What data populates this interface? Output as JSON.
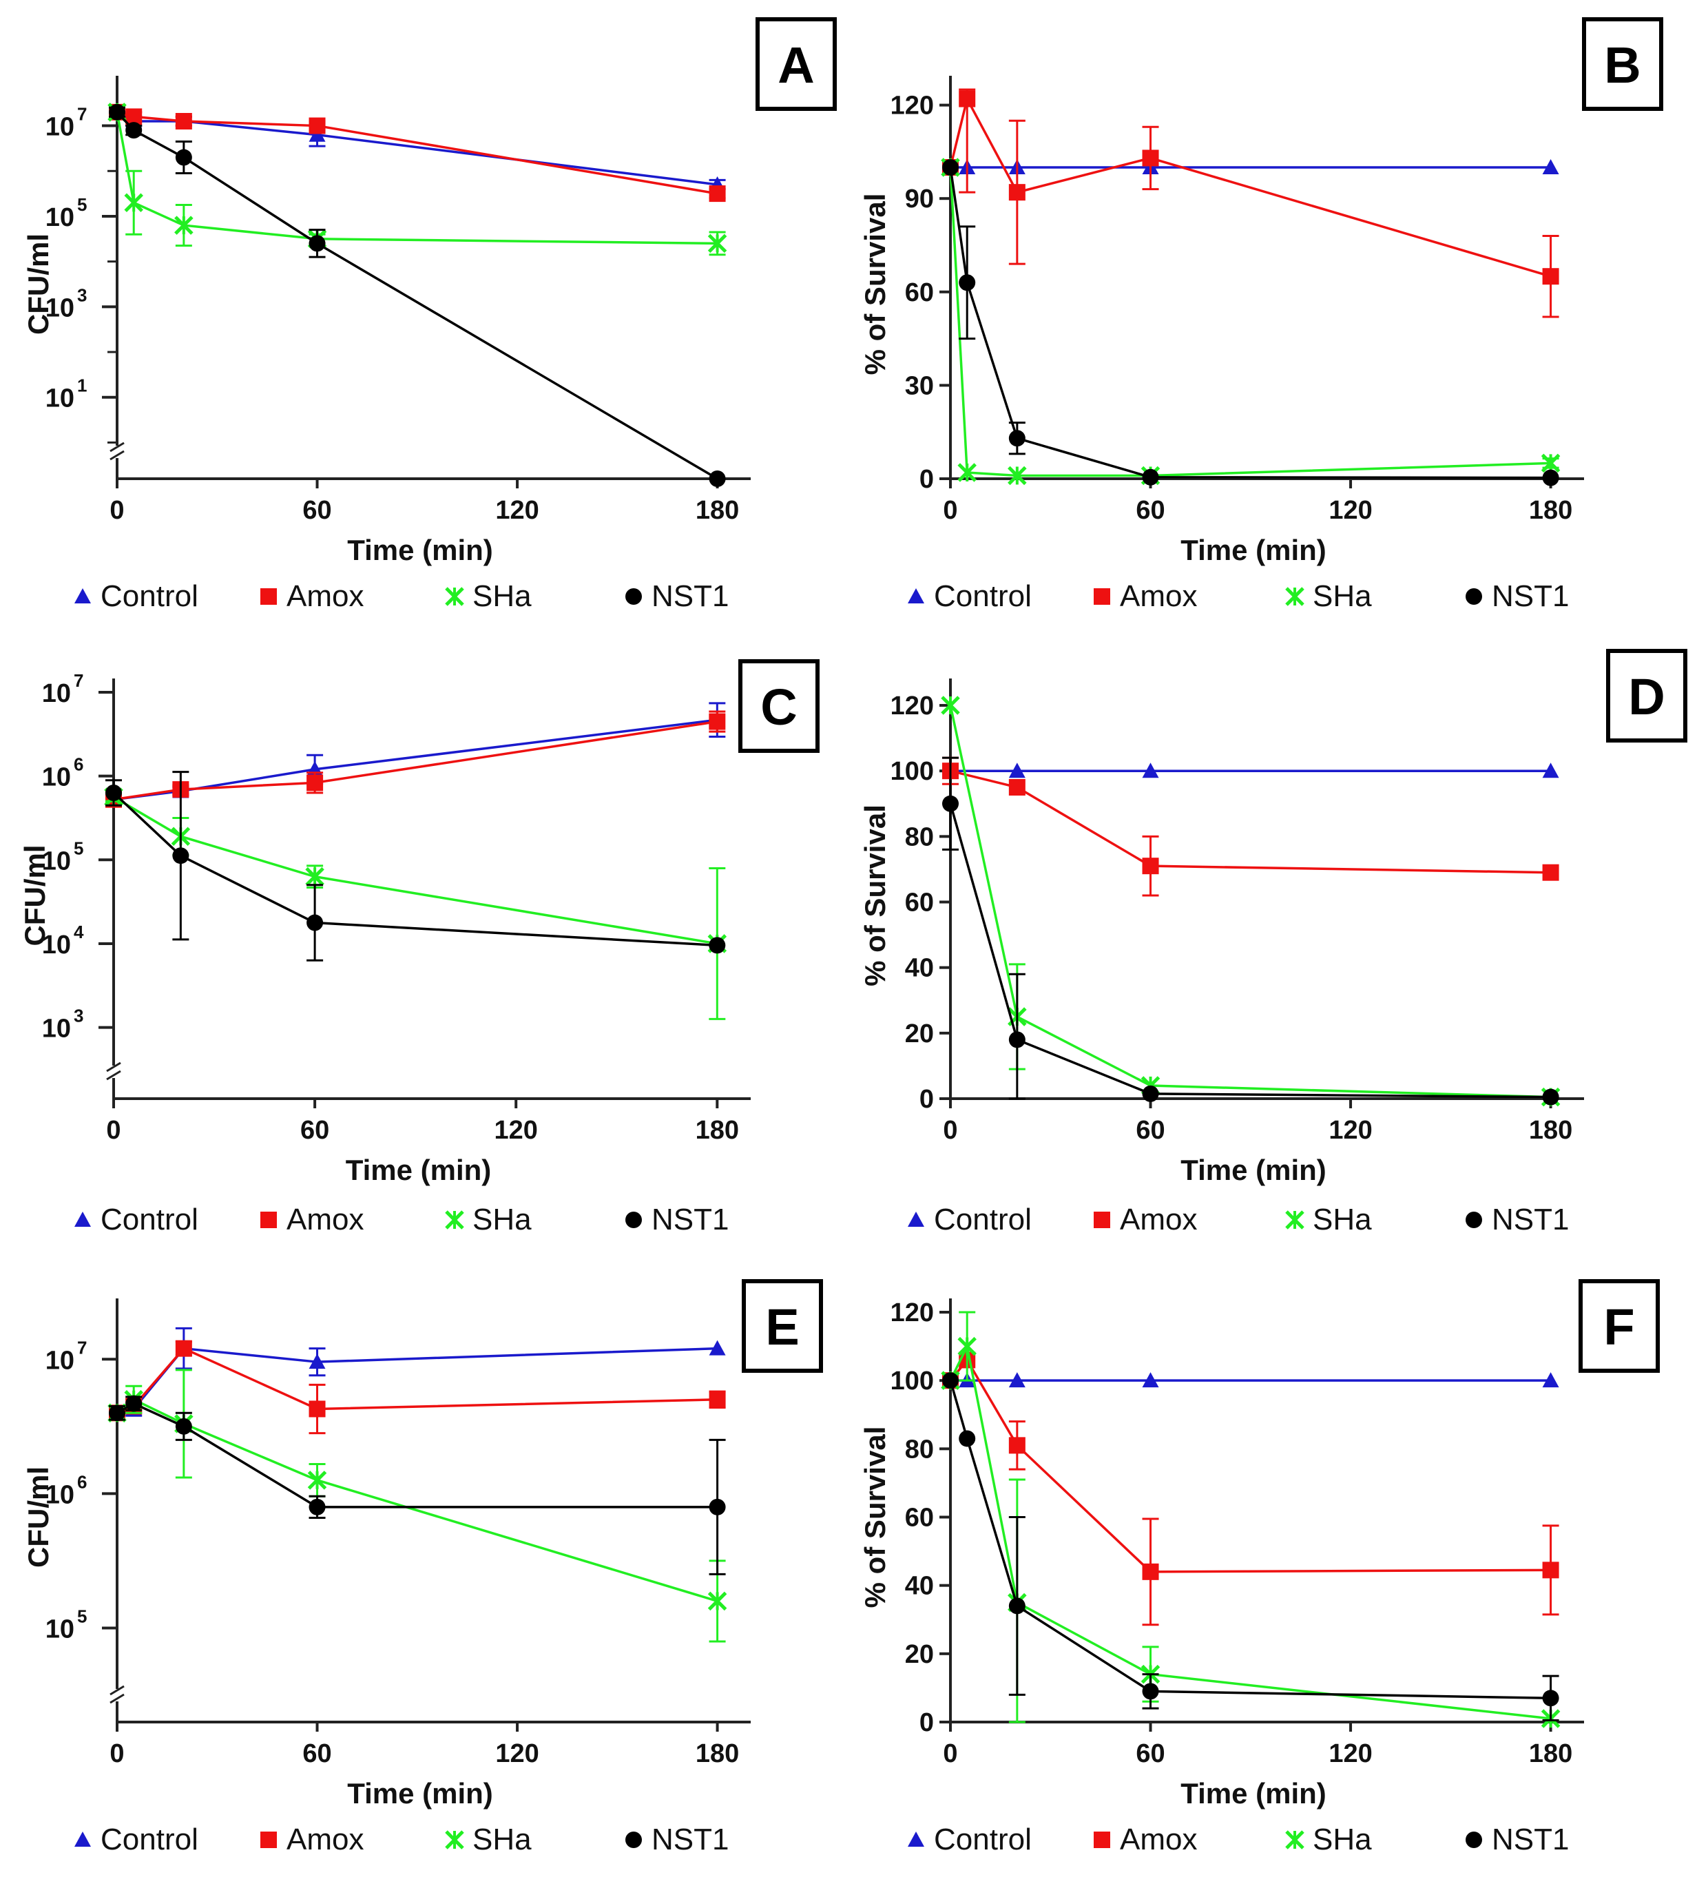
{
  "figure": {
    "series_styles": [
      {
        "name": "Control",
        "color": "#1a1acc",
        "marker": "triangle"
      },
      {
        "name": "Amox",
        "color": "#ee1111",
        "marker": "square"
      },
      {
        "name": "SHa",
        "color": "#22ee22",
        "marker": "cross"
      },
      {
        "name": "NST1",
        "color": "#000000",
        "marker": "circle"
      }
    ]
  },
  "chart_data": [
    {
      "panel": "A",
      "type": "line",
      "scale": "log",
      "xlabel": "Time (min)",
      "ylabel": "CFU/ml",
      "xlim": [
        0,
        190
      ],
      "xticks": [
        0,
        60,
        120,
        180
      ],
      "ylim_exp": [
        -0.8,
        7.8
      ],
      "yticks": [
        {
          "exp": 1,
          "base": "10",
          "sup": "1"
        },
        {
          "exp": 3,
          "base": "10",
          "sup": "3"
        },
        {
          "exp": 5,
          "base": "10",
          "sup": "5"
        },
        {
          "exp": 7,
          "base": "10",
          "sup": "7"
        }
      ],
      "axis_break": true,
      "legend": [
        "Control",
        "Amox",
        "SHa",
        "NST1"
      ],
      "series": [
        {
          "name": "Control",
          "x": [
            0,
            5,
            20,
            60,
            180
          ],
          "y": [
            7.3,
            7.1,
            7.1,
            6.8,
            5.7
          ],
          "err": [
            0.1,
            0.1,
            0.1,
            0.25,
            0.1
          ]
        },
        {
          "name": "Amox",
          "x": [
            0,
            5,
            20,
            60,
            180
          ],
          "y": [
            7.3,
            7.2,
            7.1,
            7.0,
            5.5
          ],
          "err": [
            0.1,
            0.1,
            0.1,
            0.1,
            0.1
          ]
        },
        {
          "name": "SHa",
          "x": [
            0,
            5,
            20,
            60,
            180
          ],
          "y": [
            7.3,
            5.3,
            4.8,
            4.5,
            4.4
          ],
          "err": [
            0.1,
            0.7,
            0.45,
            0.1,
            0.25
          ]
        },
        {
          "name": "NST1",
          "x": [
            0,
            5,
            20,
            60,
            180
          ],
          "y": [
            7.3,
            6.9,
            6.3,
            4.4,
            -0.8
          ],
          "err": [
            0.1,
            0.1,
            0.35,
            0.3,
            0
          ]
        }
      ]
    },
    {
      "panel": "B",
      "type": "line",
      "scale": "linear",
      "xlabel": "Time (min)",
      "ylabel": "% of Survival",
      "xlim": [
        0,
        190
      ],
      "xticks": [
        0,
        60,
        120,
        180
      ],
      "ylim": [
        0,
        125
      ],
      "yticks": [
        0,
        30,
        60,
        90,
        120
      ],
      "legend": [
        "Control",
        "Amox",
        "SHa",
        "NST1"
      ],
      "series": [
        {
          "name": "Control",
          "x": [
            0,
            5,
            20,
            60,
            180
          ],
          "y": [
            100,
            100,
            100,
            100,
            100
          ],
          "err": [
            0,
            0,
            0,
            0,
            0
          ]
        },
        {
          "name": "Amox",
          "x": [
            0,
            5,
            20,
            60,
            180
          ],
          "y": [
            100,
            122,
            92,
            103,
            65
          ],
          "err": [
            0,
            30,
            23,
            10,
            13
          ]
        },
        {
          "name": "SHa",
          "x": [
            0,
            5,
            20,
            60,
            180
          ],
          "y": [
            100,
            2,
            1,
            1,
            5
          ],
          "err": [
            0,
            0,
            0,
            0,
            1.5
          ]
        },
        {
          "name": "NST1",
          "x": [
            0,
            5,
            20,
            60,
            180
          ],
          "y": [
            100,
            63,
            13,
            0.5,
            0.3
          ],
          "err": [
            0,
            18,
            5,
            0,
            0
          ]
        }
      ]
    },
    {
      "panel": "C",
      "type": "line",
      "scale": "log",
      "xlabel": "Time (min)",
      "ylabel": "CFU/ml",
      "xlim": [
        0,
        190
      ],
      "xticks": [
        0,
        60,
        120,
        180
      ],
      "ylim_exp": [
        2.15,
        7.0
      ],
      "yticks": [
        {
          "exp": 3,
          "base": "10",
          "sup": "3"
        },
        {
          "exp": 4,
          "base": "10",
          "sup": "4"
        },
        {
          "exp": 5,
          "base": "10",
          "sup": "5"
        },
        {
          "exp": 6,
          "base": "10",
          "sup": "6"
        },
        {
          "exp": 7,
          "base": "10",
          "sup": "7"
        }
      ],
      "axis_break": true,
      "legend": [
        "Control",
        "Amox",
        "SHa",
        "NST1"
      ],
      "series": [
        {
          "name": "Control",
          "x": [
            0,
            20,
            60,
            180
          ],
          "y": [
            5.72,
            5.82,
            6.08,
            6.67
          ],
          "err": [
            0.05,
            0.05,
            0.17,
            0.2
          ]
        },
        {
          "name": "Amox",
          "x": [
            0,
            20,
            60,
            180
          ],
          "y": [
            5.72,
            5.84,
            5.92,
            6.65
          ],
          "err": [
            0.05,
            0.05,
            0.12,
            0.12
          ]
        },
        {
          "name": "SHa",
          "x": [
            0,
            20,
            60,
            180
          ],
          "y": [
            5.75,
            5.28,
            4.8,
            4.0
          ],
          "err": [
            0.05,
            0.22,
            0.13,
            0.9
          ]
        },
        {
          "name": "NST1",
          "x": [
            0,
            20,
            60,
            180
          ],
          "y": [
            5.8,
            5.05,
            4.25,
            3.98
          ],
          "err": [
            0.15,
            1.0,
            0.45,
            0
          ]
        }
      ]
    },
    {
      "panel": "D",
      "type": "line",
      "scale": "linear",
      "xlabel": "Time (min)",
      "ylabel": "% of Survival",
      "xlim": [
        0,
        190
      ],
      "xticks": [
        0,
        60,
        120,
        180
      ],
      "ylim": [
        0,
        124
      ],
      "yticks": [
        0,
        20,
        40,
        60,
        80,
        100,
        120
      ],
      "legend": [
        "Control",
        "Amox",
        "SHa",
        "NST1"
      ],
      "series": [
        {
          "name": "Control",
          "x": [
            0,
            20,
            60,
            180
          ],
          "y": [
            100,
            100,
            100,
            100
          ],
          "err": [
            0,
            0,
            0,
            0
          ]
        },
        {
          "name": "Amox",
          "x": [
            0,
            20,
            60,
            180
          ],
          "y": [
            100,
            95,
            71,
            69
          ],
          "err": [
            4,
            0,
            9,
            0
          ]
        },
        {
          "name": "SHa",
          "x": [
            0,
            20,
            60,
            180
          ],
          "y": [
            120,
            25,
            4,
            0.5
          ],
          "err": [
            0,
            16,
            0,
            0
          ]
        },
        {
          "name": "NST1",
          "x": [
            0,
            20,
            60,
            180
          ],
          "y": [
            90,
            18,
            1.5,
            0.5
          ],
          "err": [
            14,
            20,
            0,
            0
          ]
        }
      ]
    },
    {
      "panel": "E",
      "type": "line",
      "scale": "log",
      "xlabel": "Time (min)",
      "ylabel": "CFU/ml",
      "xlim": [
        0,
        190
      ],
      "xticks": [
        0,
        60,
        120,
        180
      ],
      "ylim_exp": [
        4.3,
        7.35
      ],
      "yticks": [
        {
          "exp": 5,
          "base": "10",
          "sup": "5"
        },
        {
          "exp": 6,
          "base": "10",
          "sup": "6"
        },
        {
          "exp": 7,
          "base": "10",
          "sup": "7"
        }
      ],
      "axis_break": true,
      "legend": [
        "Control",
        "Amox",
        "SHa",
        "NST1"
      ],
      "series": [
        {
          "name": "Control",
          "x": [
            0,
            5,
            20,
            60,
            180
          ],
          "y": [
            6.6,
            6.63,
            7.08,
            6.98,
            7.08
          ],
          "err": [
            0.05,
            0.05,
            0.15,
            0.1,
            0
          ]
        },
        {
          "name": "Amox",
          "x": [
            0,
            5,
            20,
            60,
            180
          ],
          "y": [
            6.6,
            6.65,
            7.08,
            6.63,
            6.7
          ],
          "err": [
            0.05,
            0.05,
            0.05,
            0.18,
            0.06
          ]
        },
        {
          "name": "SHa",
          "x": [
            0,
            5,
            20,
            60,
            180
          ],
          "y": [
            6.6,
            6.7,
            6.52,
            6.1,
            5.2
          ],
          "err": [
            0.05,
            0.1,
            0.4,
            0.12,
            0.3
          ]
        },
        {
          "name": "NST1",
          "x": [
            0,
            5,
            20,
            60,
            180
          ],
          "y": [
            6.6,
            6.67,
            6.5,
            5.9,
            5.9
          ],
          "err": [
            0.05,
            0.05,
            0.1,
            0.08,
            0.5
          ]
        }
      ]
    },
    {
      "panel": "F",
      "type": "line",
      "scale": "linear",
      "xlabel": "Time (min)",
      "ylabel": "% of Survival",
      "xlim": [
        0,
        190
      ],
      "xticks": [
        0,
        60,
        120,
        180
      ],
      "ylim": [
        0,
        120
      ],
      "yticks": [
        0,
        20,
        40,
        60,
        80,
        100,
        120
      ],
      "legend": [
        "Control",
        "Amox",
        "SHa",
        "NST1"
      ],
      "series": [
        {
          "name": "Control",
          "x": [
            0,
            5,
            20,
            60,
            180
          ],
          "y": [
            100,
            100,
            100,
            100,
            100
          ],
          "err": [
            0,
            0,
            0,
            0,
            0
          ]
        },
        {
          "name": "Amox",
          "x": [
            0,
            5,
            20,
            60,
            180
          ],
          "y": [
            100,
            106,
            81,
            44,
            44.5
          ],
          "err": [
            0,
            0,
            7,
            15.5,
            13
          ]
        },
        {
          "name": "SHa",
          "x": [
            0,
            5,
            20,
            60,
            180
          ],
          "y": [
            100,
            110,
            35,
            14,
            1
          ],
          "err": [
            0,
            10,
            36,
            8,
            0
          ]
        },
        {
          "name": "NST1",
          "x": [
            0,
            5,
            20,
            60,
            180
          ],
          "y": [
            100,
            83,
            34,
            9,
            7
          ],
          "err": [
            0,
            0,
            26,
            5,
            6.5
          ]
        }
      ]
    }
  ]
}
